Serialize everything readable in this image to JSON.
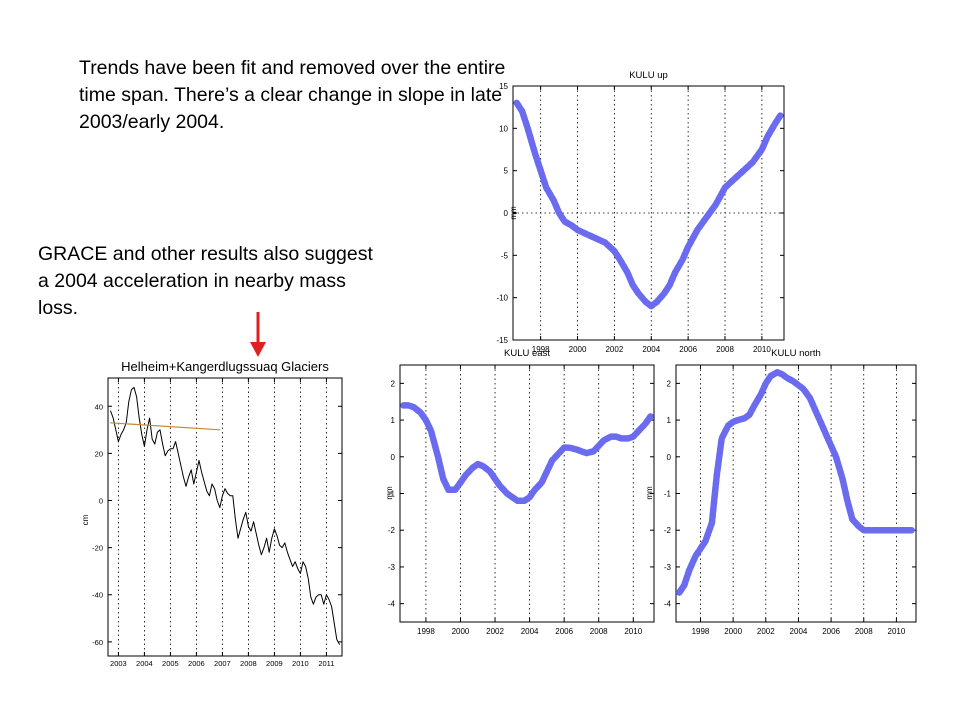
{
  "slide": {
    "text_trends": "Trends have been fit and removed over the entire time span.  There’s a clear change in slope in late 2003/early 2004.",
    "text_grace": "GRACE and other results also suggest a 2004 acceleration in nearby mass loss.",
    "arrow_color": "#e0201e"
  },
  "chart_data": [
    {
      "id": "up",
      "type": "line",
      "title": "KULU up",
      "ylabel": "mm",
      "xlabel": "",
      "xlim": [
        1996.5,
        2011.2
      ],
      "ylim": [
        -15,
        15
      ],
      "yticks": [
        -15,
        -10,
        -5,
        0,
        5,
        10,
        15
      ],
      "xticks": [
        1998,
        2000,
        2002,
        2004,
        2006,
        2008,
        2010
      ],
      "grid": true,
      "series": [
        {
          "color": "#6b6bef",
          "x": [
            1996.7,
            1997.0,
            1997.3,
            1997.7,
            1998.0,
            1998.3,
            1998.7,
            1999.0,
            1999.3,
            1999.7,
            2000.0,
            2000.5,
            2001.0,
            2001.5,
            2002.0,
            2002.3,
            2002.7,
            2003.0,
            2003.3,
            2003.7,
            2004.0,
            2004.3,
            2004.7,
            2005.0,
            2005.3,
            2005.7,
            2006.0,
            2006.5,
            2007.0,
            2007.5,
            2008.0,
            2008.5,
            2009.0,
            2009.5,
            2010.0,
            2010.3,
            2010.7,
            2011.0
          ],
          "y": [
            13.0,
            12.0,
            10.0,
            7.0,
            5.0,
            3.0,
            1.5,
            0.0,
            -1.0,
            -1.5,
            -2.0,
            -2.5,
            -3.0,
            -3.5,
            -4.5,
            -5.5,
            -7.0,
            -8.5,
            -9.5,
            -10.5,
            -11.0,
            -10.5,
            -9.5,
            -8.5,
            -7.0,
            -5.5,
            -4.0,
            -2.0,
            -0.5,
            1.0,
            3.0,
            4.0,
            5.0,
            6.0,
            7.5,
            9.0,
            10.5,
            11.5
          ]
        }
      ]
    },
    {
      "id": "east",
      "type": "line",
      "title": "KULU east",
      "ylabel": "mm",
      "xlabel": "",
      "xlim": [
        1996.5,
        2011.2
      ],
      "ylim": [
        -4.5,
        2.5
      ],
      "yticks": [
        -4,
        -3,
        -2,
        -1,
        0,
        1,
        2
      ],
      "xticks": [
        1998,
        2000,
        2002,
        2004,
        2006,
        2008,
        2010
      ],
      "grid": true,
      "series": [
        {
          "color": "#6b6bef",
          "x": [
            1996.7,
            1997.0,
            1997.3,
            1997.7,
            1998.0,
            1998.3,
            1998.7,
            1999.0,
            1999.3,
            1999.7,
            2000.0,
            2000.3,
            2000.7,
            2001.0,
            2001.3,
            2001.7,
            2002.0,
            2002.3,
            2002.7,
            2003.0,
            2003.3,
            2003.7,
            2004.0,
            2004.3,
            2004.7,
            2005.0,
            2005.3,
            2005.7,
            2006.0,
            2006.3,
            2006.7,
            2007.0,
            2007.3,
            2007.7,
            2008.0,
            2008.3,
            2008.7,
            2009.0,
            2009.3,
            2009.7,
            2010.0,
            2010.3,
            2010.7,
            2011.0
          ],
          "y": [
            1.4,
            1.4,
            1.35,
            1.2,
            1.0,
            0.7,
            0.0,
            -0.6,
            -0.9,
            -0.9,
            -0.7,
            -0.5,
            -0.3,
            -0.2,
            -0.25,
            -0.4,
            -0.6,
            -0.8,
            -1.0,
            -1.1,
            -1.2,
            -1.2,
            -1.1,
            -0.9,
            -0.7,
            -0.4,
            -0.1,
            0.1,
            0.25,
            0.25,
            0.2,
            0.15,
            0.1,
            0.15,
            0.3,
            0.45,
            0.55,
            0.55,
            0.5,
            0.5,
            0.55,
            0.7,
            0.9,
            1.1
          ]
        }
      ]
    },
    {
      "id": "north",
      "type": "line",
      "title": "KULU north",
      "ylabel": "mm",
      "xlabel": "",
      "xlim": [
        1996.5,
        2011.2
      ],
      "ylim": [
        -4.5,
        2.5
      ],
      "yticks": [
        -4,
        -3,
        -2,
        -1,
        0,
        1,
        2
      ],
      "xticks": [
        1998,
        2000,
        2002,
        2004,
        2006,
        2008,
        2010
      ],
      "grid": true,
      "series": [
        {
          "color": "#6b6bef",
          "x": [
            1996.7,
            1997.0,
            1997.3,
            1997.7,
            1998.0,
            1998.3,
            1998.7,
            1999.0,
            1999.3,
            1999.7,
            2000.0,
            2000.3,
            2000.7,
            2001.0,
            2001.3,
            2001.7,
            2002.0,
            2002.3,
            2002.7,
            2003.0,
            2003.3,
            2003.7,
            2004.0,
            2004.3,
            2004.7,
            2005.0,
            2005.3,
            2005.7,
            2006.0,
            2006.3,
            2006.7,
            2007.0,
            2007.3,
            2007.7,
            2008.0,
            2008.3,
            2008.7,
            2009.0,
            2009.3,
            2009.7,
            2010.0,
            2010.3,
            2010.7,
            2011.0
          ],
          "y": [
            -3.7,
            -3.5,
            -3.1,
            -2.7,
            -2.5,
            -2.3,
            -1.8,
            -0.5,
            0.5,
            0.85,
            0.95,
            1.0,
            1.05,
            1.15,
            1.4,
            1.7,
            2.0,
            2.2,
            2.3,
            2.25,
            2.15,
            2.05,
            1.95,
            1.85,
            1.6,
            1.3,
            1.0,
            0.6,
            0.3,
            0.0,
            -0.6,
            -1.2,
            -1.7,
            -1.9,
            -2.0,
            -2.0,
            -2.0,
            -2.0,
            -2.0,
            -2.0,
            -2.0,
            -2.0,
            -2.0,
            -2.0
          ]
        }
      ]
    },
    {
      "id": "grace",
      "type": "line",
      "title": "Helheim+Kangerdlugssuaq Glaciers",
      "ylabel": "cm",
      "xlabel": "",
      "xlim": [
        2002.6,
        2011.6
      ],
      "ylim": [
        -66,
        52
      ],
      "yticks": [
        -60,
        -40,
        -20,
        0,
        20,
        40
      ],
      "xticks": [
        2003,
        2004,
        2005,
        2006,
        2007,
        2008,
        2009,
        2010,
        2011
      ],
      "grid": true,
      "series": [
        {
          "color": "#000000",
          "x": [
            2002.7,
            2002.8,
            2002.9,
            2003.0,
            2003.1,
            2003.2,
            2003.3,
            2003.4,
            2003.5,
            2003.6,
            2003.7,
            2003.8,
            2003.9,
            2004.0,
            2004.1,
            2004.2,
            2004.3,
            2004.4,
            2004.5,
            2004.6,
            2004.7,
            2004.8,
            2004.9,
            2005.0,
            2005.1,
            2005.2,
            2005.3,
            2005.4,
            2005.5,
            2005.6,
            2005.7,
            2005.8,
            2005.9,
            2006.0,
            2006.1,
            2006.2,
            2006.3,
            2006.4,
            2006.5,
            2006.6,
            2006.7,
            2006.8,
            2006.9,
            2007.0,
            2007.1,
            2007.2,
            2007.3,
            2007.4,
            2007.5,
            2007.6,
            2007.7,
            2007.8,
            2007.9,
            2008.0,
            2008.1,
            2008.2,
            2008.3,
            2008.4,
            2008.5,
            2008.6,
            2008.7,
            2008.8,
            2008.9,
            2009.0,
            2009.1,
            2009.2,
            2009.3,
            2009.4,
            2009.5,
            2009.6,
            2009.7,
            2009.8,
            2009.9,
            2010.0,
            2010.1,
            2010.2,
            2010.3,
            2010.4,
            2010.5,
            2010.6,
            2010.7,
            2010.8,
            2010.9,
            2011.0,
            2011.1,
            2011.2,
            2011.3,
            2011.4,
            2011.5
          ],
          "y": [
            38,
            35,
            30,
            25,
            28,
            30,
            33,
            42,
            47,
            48,
            44,
            35,
            28,
            23,
            30,
            35,
            26,
            24,
            29,
            30,
            24,
            19,
            21,
            22,
            22,
            25,
            20,
            15,
            10,
            6,
            10,
            13,
            7,
            12,
            17,
            12,
            8,
            4,
            2,
            7,
            5,
            0,
            -3,
            2,
            5,
            3,
            2,
            2,
            -8,
            -16,
            -12,
            -8,
            -5,
            -11,
            -13,
            -9,
            -14,
            -19,
            -23,
            -20,
            -16,
            -22,
            -16,
            -12,
            -15,
            -19,
            -20,
            -18,
            -22,
            -25,
            -28,
            -26,
            -29,
            -31,
            -26,
            -28,
            -33,
            -41,
            -44,
            -41,
            -40,
            -40,
            -44,
            -40,
            -42,
            -45,
            -52,
            -59,
            -61
          ]
        },
        {
          "color": "#c98a2a",
          "x": [
            2002.7,
            2006.9
          ],
          "y": [
            33,
            30
          ]
        }
      ]
    }
  ]
}
